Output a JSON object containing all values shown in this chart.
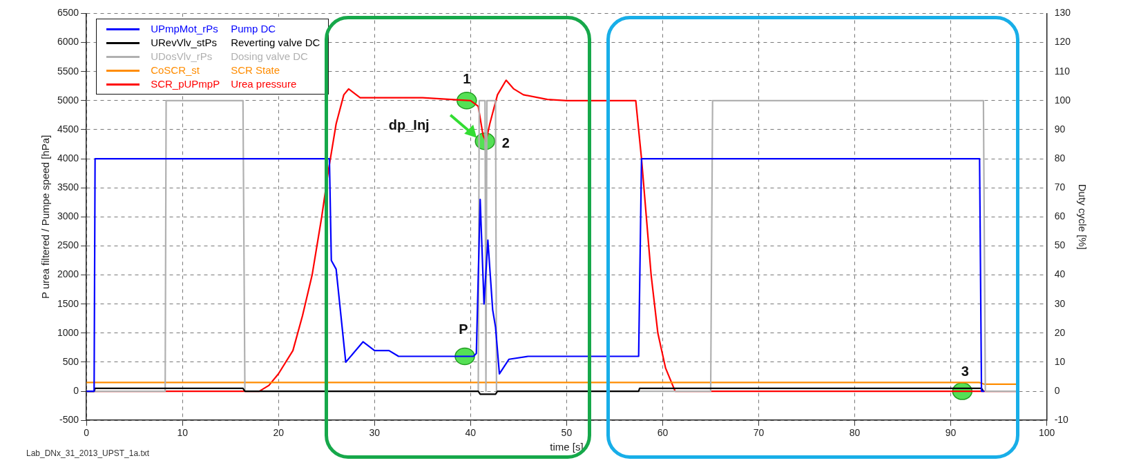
{
  "chart_data": {
    "type": "line",
    "xlabel": "time [s]",
    "ylabel": "P urea filtered / Pumpe speed [hPa]",
    "y2label": "Duty cycle [%]",
    "xlim": [
      0,
      100
    ],
    "xticks": [
      0,
      10,
      20,
      30,
      40,
      50,
      60,
      70,
      80,
      90,
      100
    ],
    "ylim": [
      -500,
      6500
    ],
    "yticks": [
      -500,
      0,
      500,
      1000,
      1500,
      2000,
      2500,
      3000,
      3500,
      4000,
      4500,
      5000,
      5500,
      6000,
      6500
    ],
    "y2lim": [
      -10,
      130
    ],
    "y2ticks": [
      -10,
      0,
      10,
      20,
      30,
      40,
      50,
      60,
      70,
      80,
      90,
      100,
      110,
      120,
      130
    ],
    "grid": true,
    "legend": "top left",
    "marker": "none",
    "series": [
      {
        "name": "UPmpMot_rPs Pump DC",
        "color": "#0000ff",
        "axis": "y2",
        "x": [
          0,
          0.8,
          0.9,
          25.3,
          25.5,
          26,
          27,
          28.8,
          30,
          31.5,
          32.5,
          40.3,
          40.6,
          41,
          41.4,
          41.8,
          42.3,
          42.6,
          43,
          44,
          46,
          57.5,
          57.8,
          93,
          93.2,
          93.5
        ],
        "values": [
          0,
          0,
          80,
          80,
          45,
          42,
          10,
          17,
          14,
          14,
          12,
          12,
          13,
          66,
          30,
          52,
          28,
          22,
          6,
          11,
          12,
          12,
          80,
          80,
          0,
          0
        ]
      },
      {
        "name": "URevVlv_stPs Reverting valve DC",
        "color": "#000000",
        "axis": "y2",
        "x": [
          0,
          0.8,
          0.9,
          16.3,
          16.5,
          40.8,
          41,
          41.5,
          41.7,
          42.6,
          42.8,
          57.5,
          57.6,
          93.2,
          93.4
        ],
        "values": [
          0,
          0,
          1,
          1,
          0,
          0,
          -1,
          -1,
          -1,
          -1,
          0,
          0,
          1,
          1,
          0
        ]
      },
      {
        "name": "UDosVlv_rPs Dosing valve DC",
        "color": "#b0b0b0",
        "axis": "y2",
        "x": [
          0,
          8.2,
          8.3,
          16.3,
          16.5,
          40.8,
          40.9,
          41.5,
          41.6,
          41.7,
          42.6,
          42.7,
          65,
          65.2,
          93.4,
          93.6,
          97
        ],
        "values": [
          0,
          0,
          100,
          100,
          0,
          0,
          100,
          100,
          0,
          100,
          100,
          0,
          0,
          100,
          100,
          0,
          0
        ]
      },
      {
        "name": "CoSCR_st SCR State",
        "color": "#ff8c00",
        "axis": "y",
        "x": [
          0,
          93,
          93.5,
          97
        ],
        "values": [
          150,
          150,
          120,
          120
        ]
      },
      {
        "name": "SCR_pUPmpP Urea pressure",
        "color": "#ff0000",
        "axis": "y",
        "x": [
          0,
          18,
          19,
          20,
          21.5,
          22.5,
          23.5,
          24.5,
          25.2,
          26,
          26.8,
          27.3,
          28.5,
          35,
          40,
          40.8,
          41.3,
          41.6,
          42,
          42.8,
          43.7,
          44.5,
          45.5,
          48,
          50,
          57.2,
          57.8,
          58.3,
          58.8,
          59.5,
          60.3,
          61.3,
          97
        ],
        "values": [
          0,
          0,
          100,
          300,
          700,
          1300,
          2000,
          3000,
          3800,
          4600,
          5100,
          5200,
          5050,
          5050,
          5000,
          4900,
          4400,
          4300,
          4600,
          5100,
          5350,
          5200,
          5100,
          5020,
          5000,
          5000,
          4000,
          3000,
          2000,
          1000,
          400,
          0,
          0
        ]
      }
    ],
    "annotations": [
      {
        "text": "1",
        "x": 39.6,
        "y": 5000
      },
      "dp_Inj",
      {
        "text": "2",
        "x": 41.5,
        "y": 4300
      },
      {
        "text": "P",
        "x": 39.4,
        "y": 600
      },
      {
        "text": "3",
        "x": 91.2,
        "y": 0
      },
      "Lab_DNx_31_2013_UPST_1a.txt"
    ]
  }
}
